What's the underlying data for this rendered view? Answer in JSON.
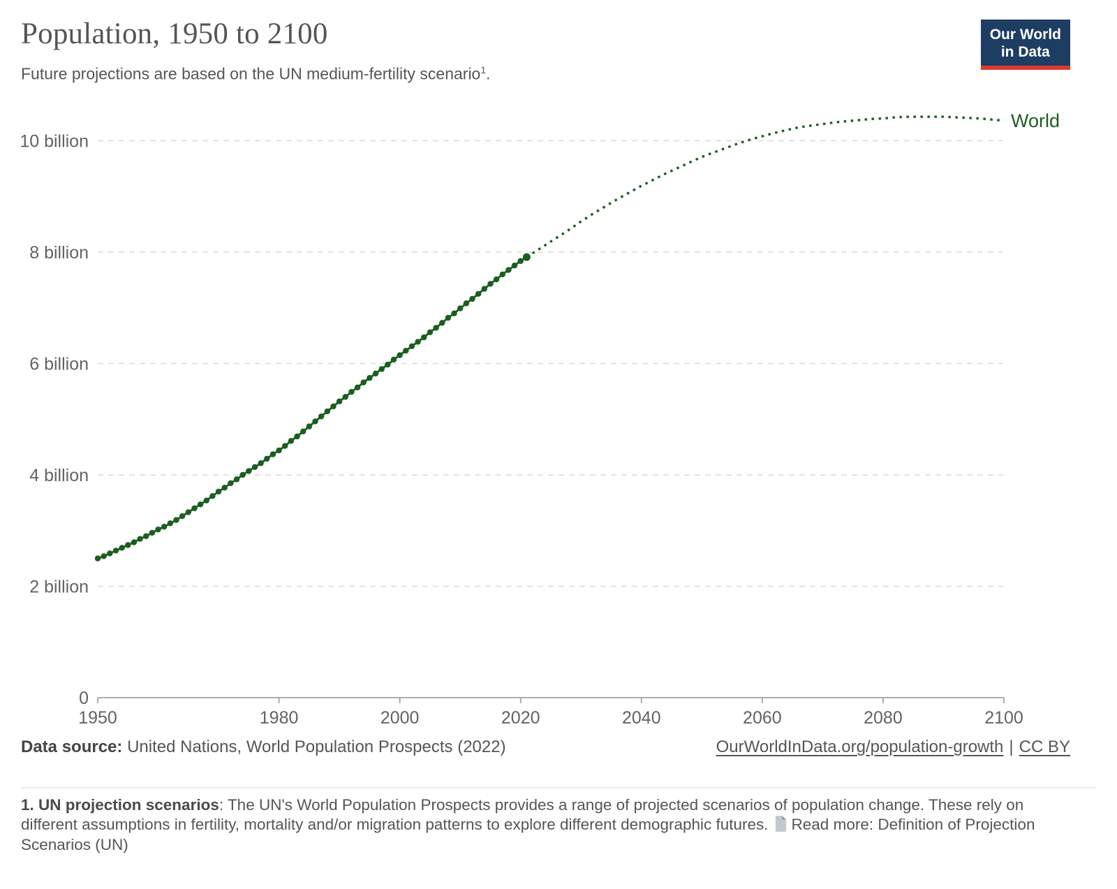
{
  "header": {
    "title": "Population, 1950 to 2100",
    "subtitle": "Future projections are based on the UN medium-fertility scenario",
    "subtitle_sup": "1",
    "subtitle_end": ".",
    "logo": {
      "line1": "Our World",
      "line2": "in Data",
      "bg_color": "#1d3d63",
      "bar_color": "#dc3a2f"
    }
  },
  "chart_data": {
    "type": "line",
    "title": "Population, 1950 to 2100",
    "series_label": "World",
    "line_color": "#1b5e20",
    "grid_color": "#d9d9d9",
    "axis_color": "#a3a3a3",
    "tick_label_color": "#636363",
    "x_range": [
      1950,
      2100
    ],
    "ylim": [
      0,
      10.8
    ],
    "yticks": [
      {
        "value": 0,
        "label": "0"
      },
      {
        "value": 2,
        "label": "2 billion"
      },
      {
        "value": 4,
        "label": "4 billion"
      },
      {
        "value": 6,
        "label": "6 billion"
      },
      {
        "value": 8,
        "label": "8 billion"
      },
      {
        "value": 10,
        "label": "10 billion"
      }
    ],
    "xticks": [
      1950,
      1980,
      2000,
      2020,
      2040,
      2060,
      2080,
      2100
    ],
    "historical": {
      "start_year": 1950,
      "step": 1,
      "values": [
        2.5,
        2.54,
        2.59,
        2.64,
        2.69,
        2.74,
        2.79,
        2.85,
        2.9,
        2.96,
        3.02,
        3.07,
        3.13,
        3.19,
        3.26,
        3.33,
        3.4,
        3.47,
        3.54,
        3.62,
        3.7,
        3.77,
        3.85,
        3.92,
        4.0,
        4.07,
        4.14,
        4.21,
        4.29,
        4.37,
        4.44,
        4.52,
        4.61,
        4.69,
        4.78,
        4.87,
        4.96,
        5.05,
        5.14,
        5.23,
        5.32,
        5.4,
        5.49,
        5.57,
        5.66,
        5.74,
        5.82,
        5.9,
        5.98,
        6.07,
        6.15,
        6.23,
        6.31,
        6.39,
        6.47,
        6.56,
        6.64,
        6.73,
        6.82,
        6.9,
        6.99,
        7.08,
        7.16,
        7.25,
        7.34,
        7.43,
        7.51,
        7.6,
        7.68,
        7.76,
        7.84,
        7.91
      ]
    },
    "projection": {
      "start_year": 2022,
      "step": 2,
      "values": [
        7.98,
        8.12,
        8.26,
        8.4,
        8.55,
        8.69,
        8.82,
        8.95,
        9.07,
        9.19,
        9.3,
        9.41,
        9.51,
        9.61,
        9.71,
        9.79,
        9.87,
        9.95,
        10.02,
        10.08,
        10.14,
        10.19,
        10.24,
        10.27,
        10.3,
        10.33,
        10.35,
        10.37,
        10.39,
        10.4,
        10.42,
        10.43,
        10.43,
        10.43,
        10.43,
        10.42,
        10.41,
        10.4,
        10.38,
        10.36
      ]
    }
  },
  "footer": {
    "source_label": "Data source:",
    "source_text": "United Nations, World Population Prospects (2022)",
    "url_label": "OurWorldInData.org/population-growth",
    "separator": "|",
    "license_label": "CC BY"
  },
  "footnote": {
    "label": "1. UN projection scenarios",
    "text": ": The UN's World Population Prospects provides a range of projected scenarios of population change. These rely on different assumptions in fertility, mortality and/or migration patterns to explore different demographic futures.",
    "icon": "document-icon",
    "read_more": "Read more: Definition of Projection Scenarios (UN)"
  }
}
